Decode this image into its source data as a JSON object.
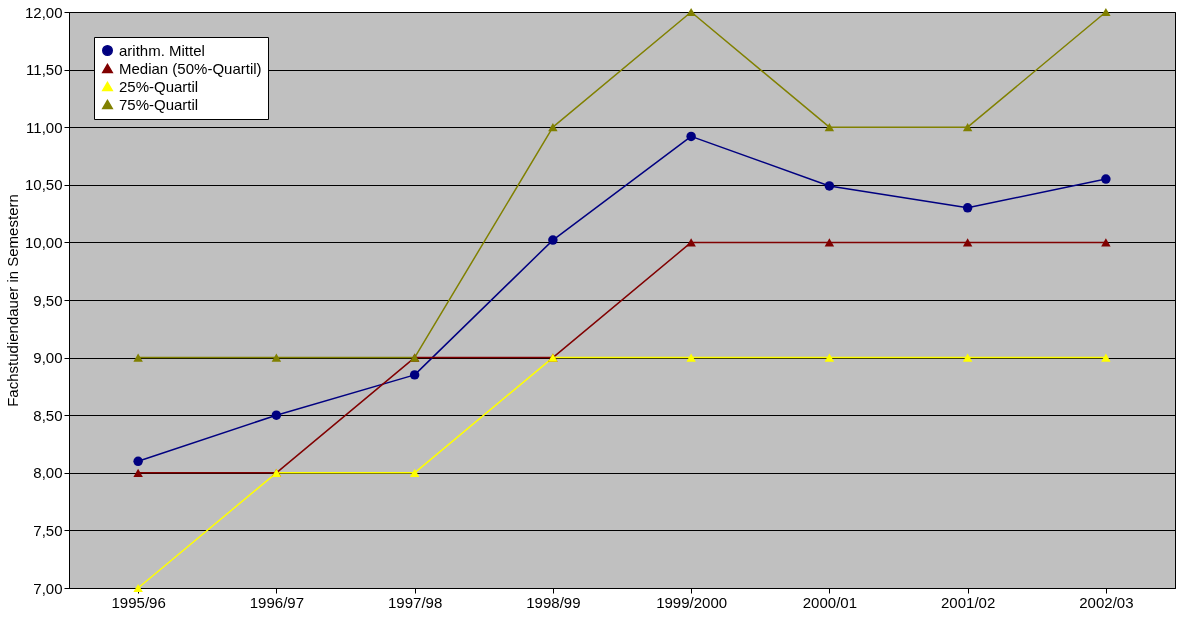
{
  "chart_data": {
    "type": "line",
    "ylabel": "Fachstudiendauer in Semestern",
    "categories": [
      "1995/96",
      "1996/97",
      "1997/98",
      "1998/99",
      "1999/2000",
      "2000/01",
      "2001/02",
      "2002/03"
    ],
    "series": [
      {
        "name": "arithm. Mittel",
        "color": "#000080",
        "marker": "circle",
        "values": [
          8.1,
          8.5,
          8.85,
          10.02,
          10.92,
          10.49,
          10.3,
          10.55
        ]
      },
      {
        "name": "Median (50%-Quartil)",
        "color": "#800000",
        "marker": "triangle",
        "values": [
          8,
          8,
          9,
          9,
          10,
          10,
          10,
          10
        ]
      },
      {
        "name": "25%-Quartil",
        "color": "#ffff00",
        "marker": "triangle",
        "values": [
          7,
          8,
          8,
          9,
          9,
          9,
          9,
          9
        ]
      },
      {
        "name": "75%-Quartil",
        "color": "#808000",
        "marker": "triangle",
        "values": [
          9,
          9,
          9,
          11,
          12,
          11,
          11,
          12
        ]
      }
    ],
    "ylim": [
      7,
      12
    ],
    "yticks": [
      {
        "value": 7,
        "label": "7,00"
      },
      {
        "value": 7.5,
        "label": "7,50"
      },
      {
        "value": 8,
        "label": "8,00"
      },
      {
        "value": 8.5,
        "label": "8,50"
      },
      {
        "value": 9,
        "label": "9,00"
      },
      {
        "value": 9.5,
        "label": "9,50"
      },
      {
        "value": 10,
        "label": "10,00"
      },
      {
        "value": 10.5,
        "label": "10,50"
      },
      {
        "value": 11,
        "label": "11,00"
      },
      {
        "value": 11.5,
        "label": "11,50"
      },
      {
        "value": 12,
        "label": "12,00"
      }
    ],
    "grid": "y",
    "legend": "top left",
    "line_style": "solid"
  }
}
